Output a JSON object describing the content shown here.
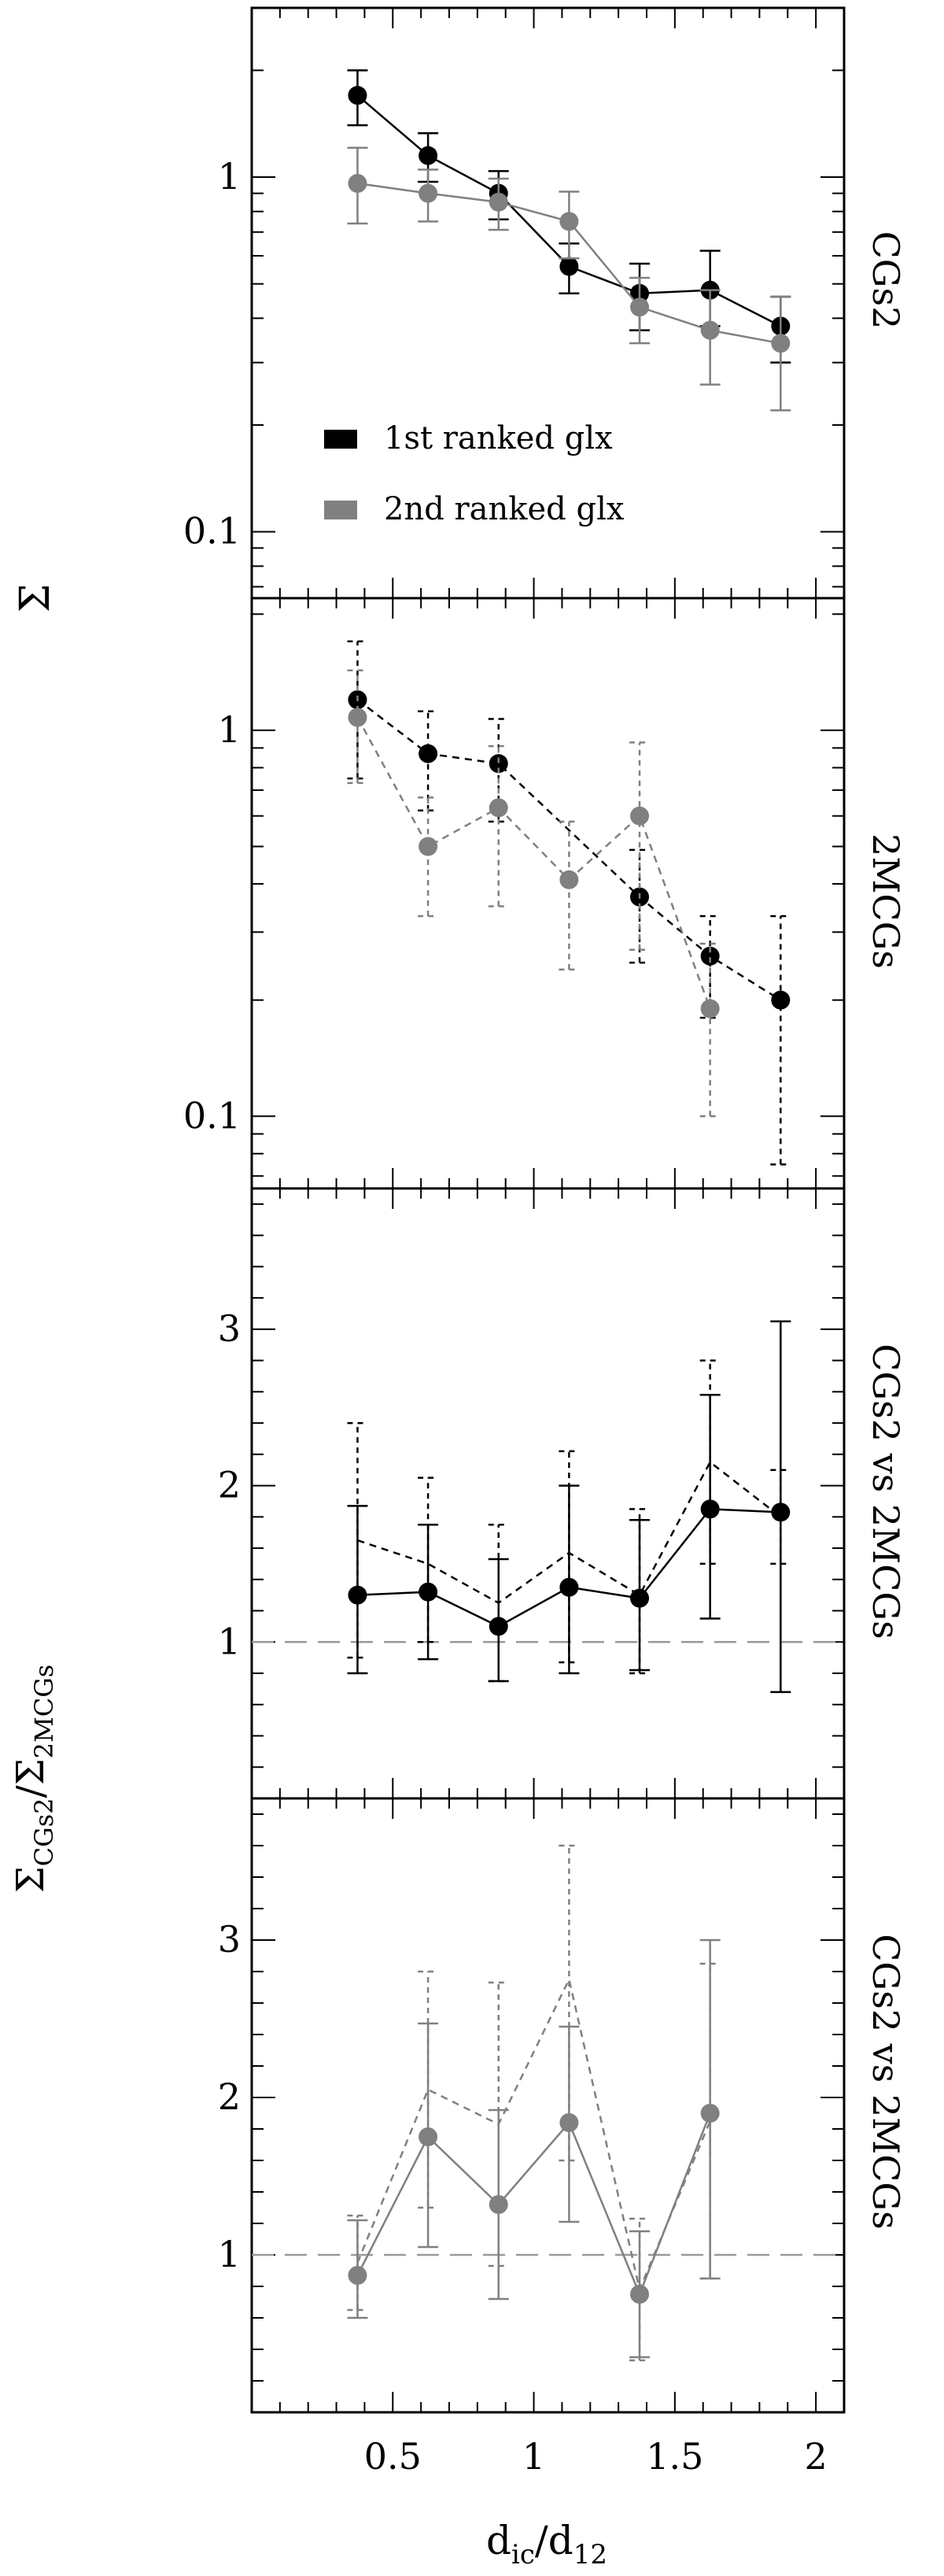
{
  "chart_data": {
    "type": "line",
    "xlabel": "d_ic/d_12",
    "xlim": [
      0.0,
      2.1
    ],
    "x_ticks": [
      "0.5",
      "1",
      "1.5",
      "2"
    ],
    "shared_ylabels": {
      "top": "Σ",
      "bottom": "Σ_CGs2/Σ_2MCGs"
    },
    "legend": {
      "placement": "lower-left of top panel",
      "entries": [
        "1st ranked glx",
        "2nd ranked glx"
      ]
    },
    "colors": {
      "first": "#000000",
      "second": "#808080",
      "reference": "#999999"
    },
    "panels": [
      {
        "label": "CGs2",
        "yscale": "log",
        "ylim": [
          0.065,
          3.0
        ],
        "y_ticks": [
          "0.1",
          "1"
        ],
        "series": [
          {
            "name": "1st ranked glx",
            "color": "#000000",
            "style": "solid",
            "x": [
              0.375,
              0.625,
              0.875,
              1.125,
              1.375,
              1.625,
              1.875
            ],
            "y": [
              1.7,
              1.15,
              0.9,
              0.56,
              0.47,
              0.48,
              0.38
            ],
            "err_low": [
              0.3,
              0.18,
              0.14,
              0.09,
              0.1,
              0.1,
              0.08
            ],
            "err_high": [
              0.3,
              0.18,
              0.14,
              0.09,
              0.1,
              0.14,
              0.08
            ]
          },
          {
            "name": "2nd ranked glx",
            "color": "#808080",
            "style": "solid",
            "x": [
              0.375,
              0.625,
              0.875,
              1.125,
              1.375,
              1.625,
              1.875
            ],
            "y": [
              0.96,
              0.9,
              0.85,
              0.75,
              0.43,
              0.37,
              0.34
            ],
            "err_low": [
              0.22,
              0.15,
              0.14,
              0.16,
              0.09,
              0.11,
              0.12
            ],
            "err_high": [
              0.25,
              0.15,
              0.14,
              0.16,
              0.09,
              0.11,
              0.12
            ]
          }
        ]
      },
      {
        "label": "2MCGs",
        "yscale": "log",
        "ylim": [
          0.065,
          2.2
        ],
        "y_ticks": [
          "0.1",
          "1"
        ],
        "series": [
          {
            "name": "1st ranked glx",
            "color": "#000000",
            "style": "dashed",
            "x": [
              0.375,
              0.625,
              0.875,
              1.375,
              1.625,
              1.875
            ],
            "y": [
              1.2,
              0.87,
              0.82,
              0.37,
              0.26,
              0.2
            ],
            "err_low": [
              0.45,
              0.25,
              0.24,
              0.12,
              0.08,
              0.125
            ],
            "err_high": [
              0.5,
              0.25,
              0.25,
              0.12,
              0.07,
              0.13
            ]
          },
          {
            "name": "2nd ranked glx",
            "color": "#808080",
            "style": "dashed",
            "x": [
              0.375,
              0.625,
              0.875,
              1.125,
              1.375,
              1.625
            ],
            "y": [
              1.08,
              0.5,
              0.63,
              0.41,
              0.6,
              0.19
            ],
            "err_low": [
              0.35,
              0.17,
              0.28,
              0.17,
              0.33,
              0.09
            ],
            "err_high": [
              0.35,
              0.17,
              0.28,
              0.17,
              0.33,
              0.09
            ]
          }
        ]
      },
      {
        "label": "CGs2 vs 2MCGs",
        "yscale": "linear",
        "ylim": [
          0.0,
          3.9
        ],
        "y_ticks": [
          "1",
          "2",
          "3"
        ],
        "reference_line": 1,
        "series": [
          {
            "name": "1st ranked glx",
            "color": "#000000",
            "style": "solid",
            "marker": "filled",
            "x": [
              0.375,
              0.625,
              0.875,
              1.125,
              1.375,
              1.625,
              1.875
            ],
            "y": [
              1.3,
              1.32,
              1.1,
              1.35,
              1.28,
              1.85,
              1.83
            ],
            "err_low": [
              0.5,
              0.43,
              0.35,
              0.55,
              0.46,
              0.7,
              1.15
            ],
            "err_high": [
              0.57,
              0.43,
              0.43,
              0.65,
              0.5,
              0.73,
              1.22
            ]
          },
          {
            "name": "1st ranked glx",
            "color": "#000000",
            "style": "dashed",
            "marker": "open",
            "x": [
              0.375,
              0.625,
              0.875,
              1.125,
              1.375,
              1.625,
              1.875
            ],
            "y": [
              1.65,
              1.5,
              1.25,
              1.57,
              1.3,
              2.15,
              1.8
            ],
            "err_low": [
              0.75,
              0.5,
              0.5,
              0.7,
              0.5,
              0.65,
              0.3
            ],
            "err_high": [
              0.75,
              0.55,
              0.5,
              0.65,
              0.55,
              0.65,
              0.3
            ]
          }
        ]
      },
      {
        "label": "CGs2 vs 2MCGs",
        "yscale": "linear",
        "ylim": [
          0.0,
          3.9
        ],
        "y_ticks": [
          "1",
          "2",
          "3"
        ],
        "reference_line": 1,
        "series": [
          {
            "name": "2nd ranked glx",
            "color": "#808080",
            "style": "solid",
            "marker": "filled",
            "x": [
              0.375,
              0.625,
              0.875,
              1.125,
              1.375,
              1.625
            ],
            "y": [
              0.87,
              1.75,
              1.32,
              1.84,
              0.75,
              1.9
            ],
            "err_low": [
              0.27,
              0.7,
              0.6,
              0.63,
              0.4,
              1.05
            ],
            "err_high": [
              0.35,
              0.72,
              0.6,
              0.61,
              0.4,
              1.1
            ]
          },
          {
            "name": "2nd ranked glx",
            "color": "#808080",
            "style": "dashed",
            "marker": "open",
            "x": [
              0.375,
              0.625,
              0.875,
              1.125,
              1.375,
              1.625
            ],
            "y": [
              0.95,
              2.05,
              1.83,
              2.75,
              0.78,
              1.85
            ],
            "err_low": [
              0.3,
              0.75,
              0.9,
              1.15,
              0.45,
              1.0
            ],
            "err_high": [
              0.3,
              0.75,
              0.9,
              0.85,
              0.45,
              1.0
            ]
          }
        ]
      }
    ]
  }
}
